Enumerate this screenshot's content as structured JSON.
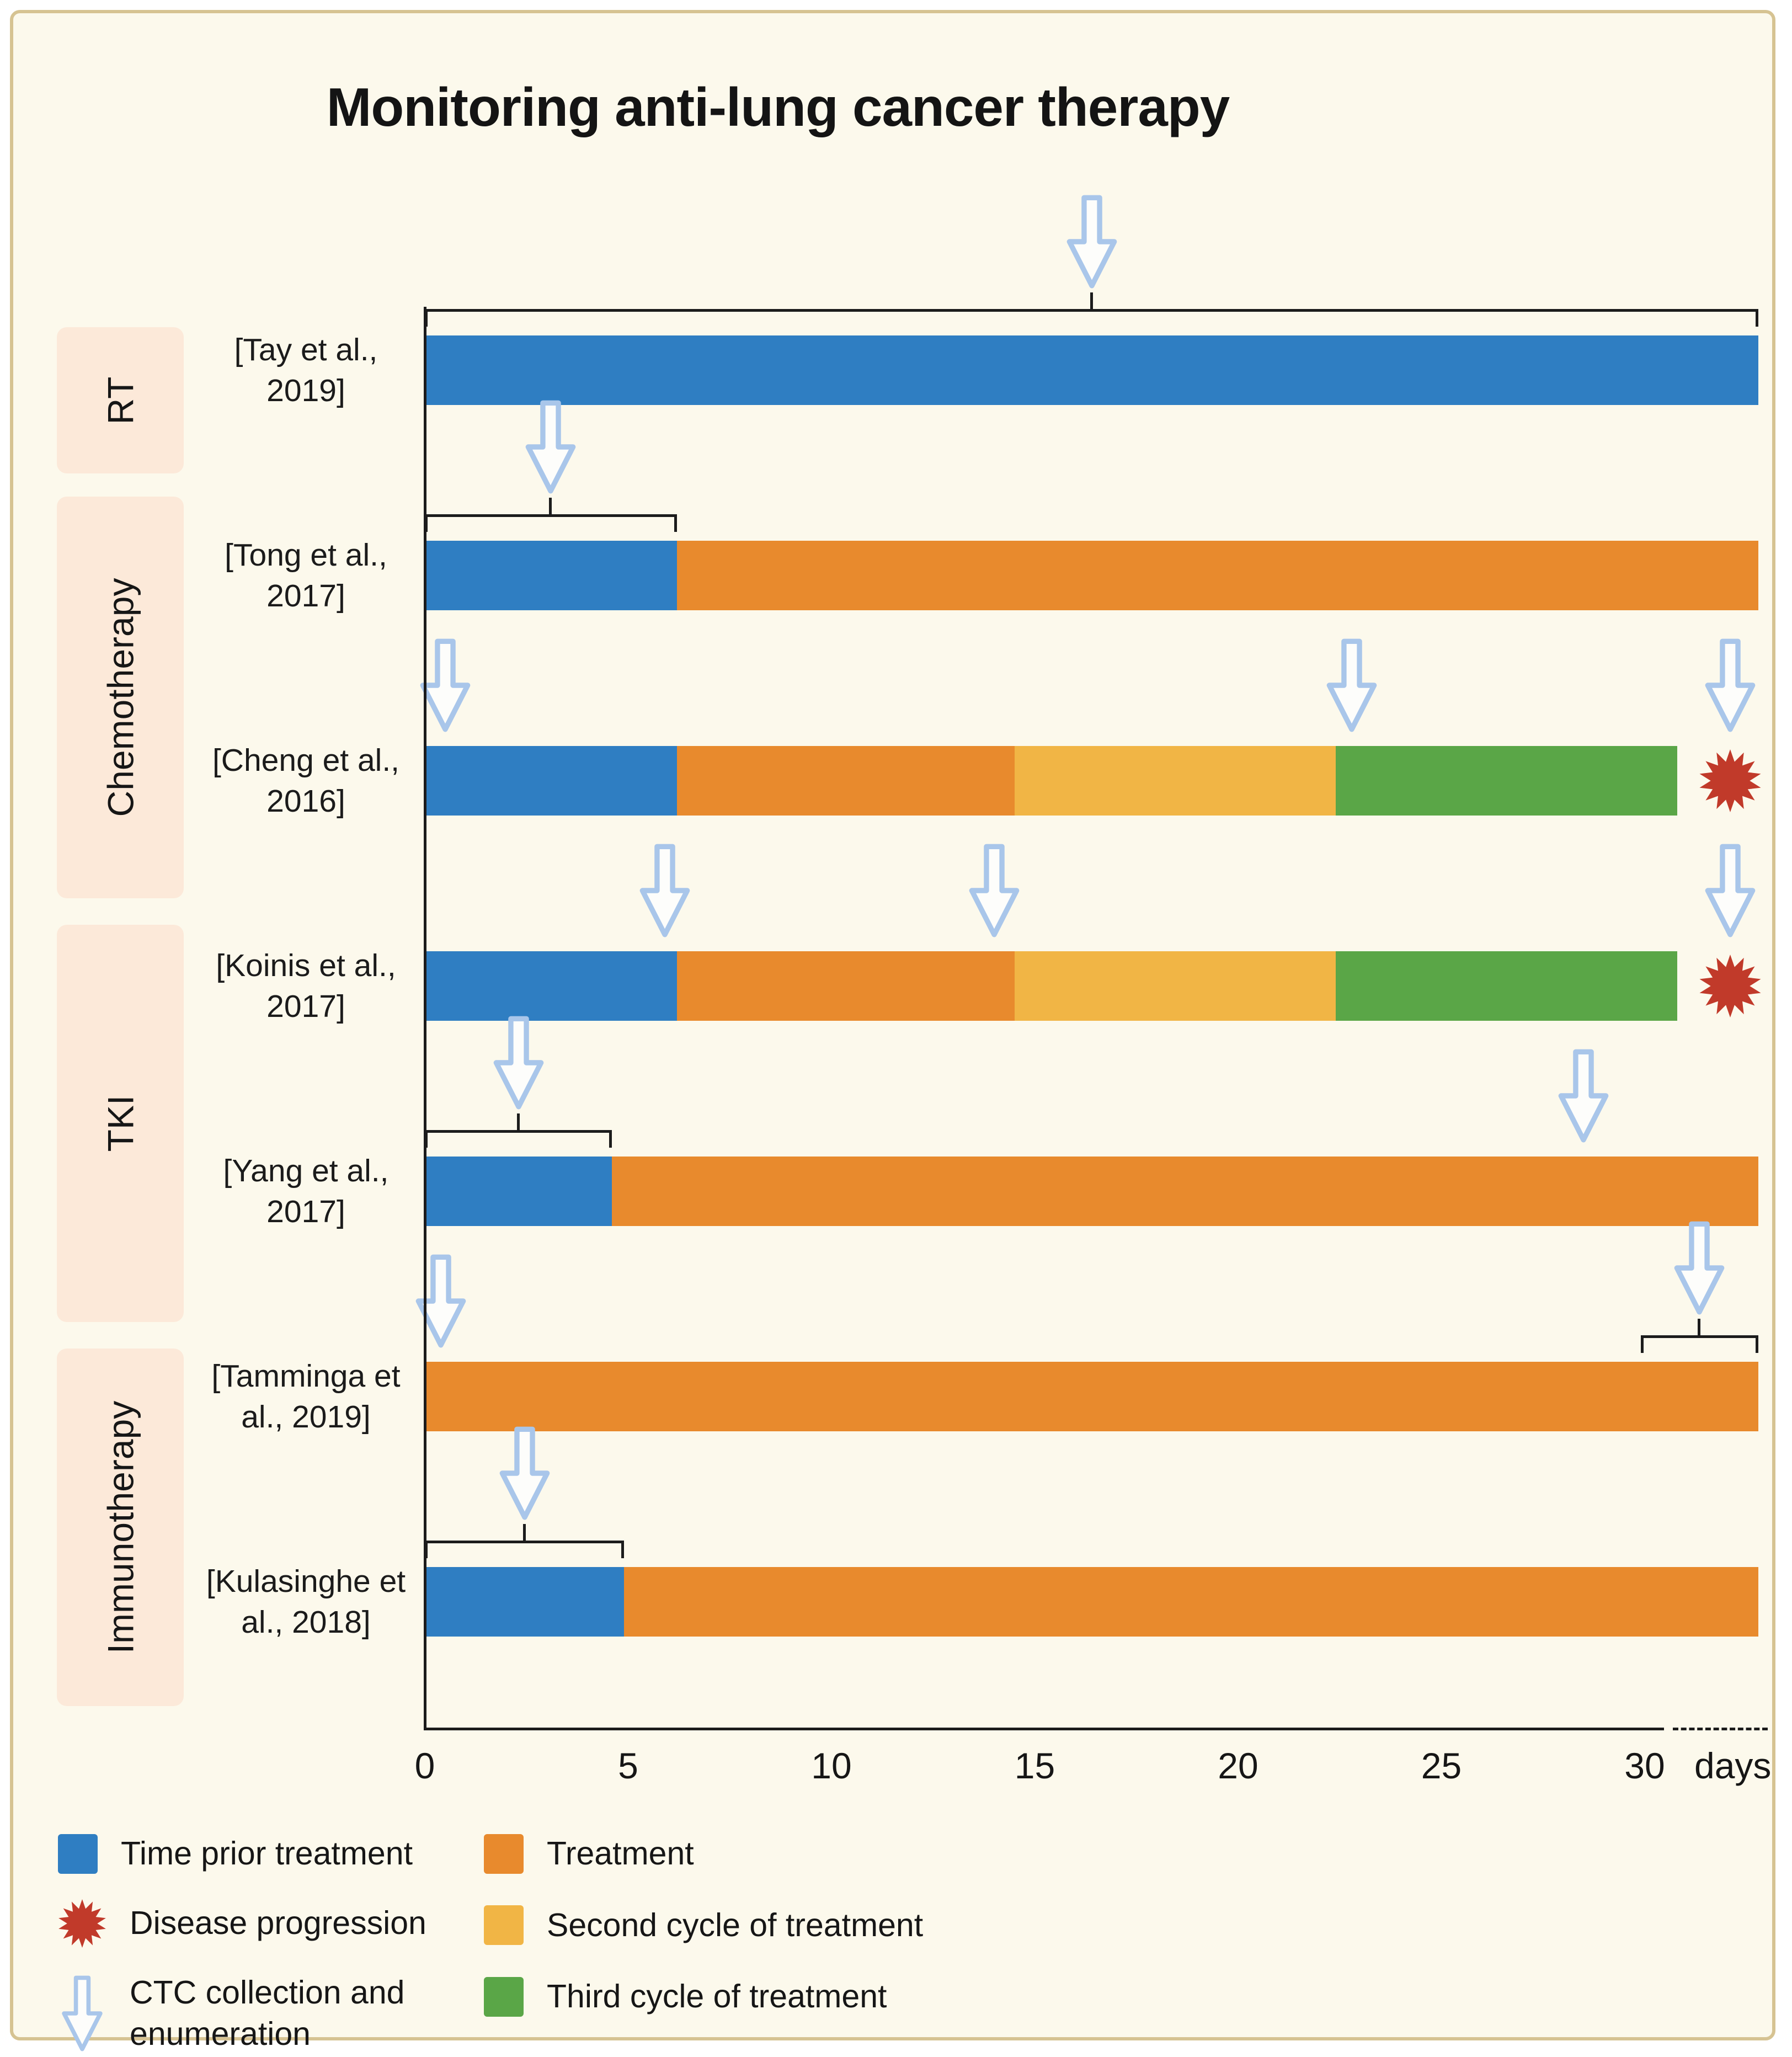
{
  "colors": {
    "prior": "#2f7ec2",
    "treatment": "#e88a2d",
    "second": "#f1b545",
    "third": "#5aa647",
    "progression": "#c13a2a",
    "arrow_fill": "#fdfdfb",
    "arrow_stroke": "#a9c6ea",
    "axis": "#1c1c1c",
    "background": "#fcf9ec",
    "frame_border": "#d6c392",
    "group_bg": "#fce9d9"
  },
  "legend": {
    "items_left": [
      {
        "icon": "time-prior-swatch",
        "label": "Time prior treatment"
      },
      {
        "icon": "disease-progression-burst-icon",
        "label": "Disease progression"
      },
      {
        "icon": "ctc-arrow-icon",
        "label": "CTC collection and enumeration"
      }
    ],
    "items_right": [
      {
        "icon": "treatment-swatch",
        "label": "Treatment"
      },
      {
        "icon": "second-cycle-swatch",
        "label": "Second cycle of treatment"
      },
      {
        "icon": "third-cycle-swatch",
        "label": "Third cycle of treatment"
      }
    ]
  },
  "chart_data": {
    "type": "timeline",
    "title": "Monitoring anti-lung cancer therapy",
    "x_unit_label": "days",
    "x_ticks": [
      0,
      5,
      10,
      15,
      20,
      25,
      30
    ],
    "x_range_days": [
      0,
      32.8
    ],
    "groups": [
      {
        "label": "RT"
      },
      {
        "label": "Chemotherapy"
      },
      {
        "label": "TKI"
      },
      {
        "label": "Immunotherapy"
      }
    ],
    "rows": [
      {
        "citation": "[Tay et al., 2019]",
        "group": "RT",
        "segments": [
          {
            "kind": "prior",
            "start": 0,
            "end": 32.8
          }
        ],
        "bracket": {
          "start": 0,
          "end": 32.8
        },
        "arrows": [
          16.4
        ],
        "progression": null
      },
      {
        "citation": "[Tong et al., 2017]",
        "group": "Chemotherapy",
        "segments": [
          {
            "kind": "prior",
            "start": 0,
            "end": 6.2
          },
          {
            "kind": "treatment",
            "start": 6.2,
            "end": 32.8
          }
        ],
        "bracket": {
          "start": 0,
          "end": 6.2
        },
        "arrows": [
          3.1
        ],
        "progression": null
      },
      {
        "citation": "[Cheng et al., 2016]",
        "group": "Chemotherapy",
        "segments": [
          {
            "kind": "prior",
            "start": 0,
            "end": 6.2
          },
          {
            "kind": "treatment",
            "start": 6.2,
            "end": 14.5
          },
          {
            "kind": "second",
            "start": 14.5,
            "end": 22.4
          },
          {
            "kind": "third",
            "start": 22.4,
            "end": 30.8
          }
        ],
        "bracket": null,
        "arrows": [
          0.5,
          22.8,
          32.1
        ],
        "progression": 32.1
      },
      {
        "citation": "[Koinis et al., 2017]",
        "group": "TKI",
        "segments": [
          {
            "kind": "prior",
            "start": 0,
            "end": 6.2
          },
          {
            "kind": "treatment",
            "start": 6.2,
            "end": 14.5
          },
          {
            "kind": "second",
            "start": 14.5,
            "end": 22.4
          },
          {
            "kind": "third",
            "start": 22.4,
            "end": 30.8
          }
        ],
        "bracket": null,
        "arrows": [
          5.9,
          14.0,
          32.1
        ],
        "progression": 32.1
      },
      {
        "citation": "[Yang et al., 2017]",
        "group": "TKI",
        "segments": [
          {
            "kind": "prior",
            "start": 0,
            "end": 4.6
          },
          {
            "kind": "treatment",
            "start": 4.6,
            "end": 32.8
          }
        ],
        "bracket": {
          "start": 0,
          "end": 4.6
        },
        "arrows": [
          2.3,
          28.5
        ],
        "progression": null
      },
      {
        "citation": "[Tamminga et al., 2019]",
        "group": "Immunotherapy",
        "segments": [
          {
            "kind": "treatment",
            "start": 0,
            "end": 32.8
          }
        ],
        "bracket": {
          "start": 29.9,
          "end": 32.8
        },
        "arrows": [
          0.4,
          31.35
        ],
        "progression": null
      },
      {
        "citation": "[Kulasinghe et al., 2018]",
        "group": "Immunotherapy",
        "segments": [
          {
            "kind": "prior",
            "start": 0,
            "end": 4.9
          },
          {
            "kind": "treatment",
            "start": 4.9,
            "end": 32.8
          }
        ],
        "bracket": {
          "start": 0,
          "end": 4.9
        },
        "arrows": [
          2.45
        ],
        "progression": null
      }
    ]
  }
}
